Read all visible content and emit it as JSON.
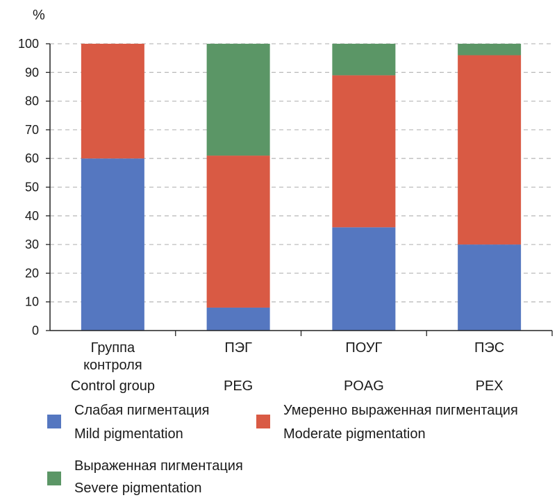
{
  "chart_data": {
    "type": "bar",
    "stacked": true,
    "y_unit_label": "%",
    "ylim": [
      0,
      100
    ],
    "y_ticks": [
      0,
      10,
      20,
      30,
      40,
      50,
      60,
      70,
      80,
      90,
      100
    ],
    "grid": "dashed horizontal",
    "categories": [
      {
        "line1": "Группа",
        "line2": "контроля",
        "line3": "Control group"
      },
      {
        "line1": "ПЭГ",
        "line2": "",
        "line3": "PEG"
      },
      {
        "line1": "ПОУГ",
        "line2": "",
        "line3": "POAG"
      },
      {
        "line1": "ПЭС",
        "line2": "",
        "line3": "PEX"
      }
    ],
    "series": [
      {
        "name": "Слабая пигментация / Mild pigmentation",
        "color": "#5577c0",
        "values": [
          60,
          8,
          36,
          30
        ]
      },
      {
        "name": "Умеренно выраженная пигментация / Moderate pigmentation",
        "color": "#d95a44",
        "values": [
          40,
          53,
          53,
          66
        ]
      },
      {
        "name": "Выраженная пигментация / Severe pigmentation",
        "color": "#5b9666",
        "values": [
          0,
          39,
          11,
          4
        ]
      }
    ]
  },
  "legend": {
    "mild": {
      "ru": "Слабая пигментация",
      "en": "Mild pigmentation",
      "color": "#5577c0"
    },
    "moderate": {
      "ru": "Умеренно выраженная пигментация",
      "en": "Moderate pigmentation",
      "color": "#d95a44"
    },
    "severe": {
      "ru": "Выраженная пигментация",
      "en": "Severe pigmentation",
      "color": "#5b9666"
    }
  }
}
